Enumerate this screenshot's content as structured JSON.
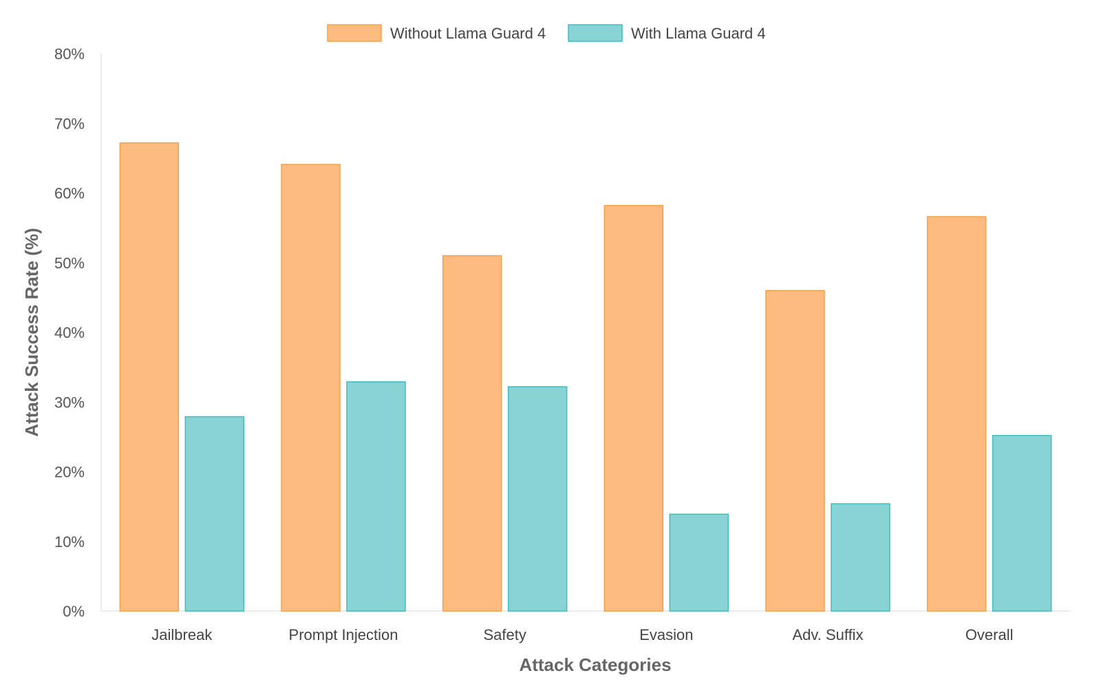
{
  "chart_data": {
    "type": "bar",
    "title": "",
    "xlabel": "Attack Categories",
    "ylabel": "Attack Success Rate (%)",
    "ylim": [
      0,
      80
    ],
    "yticks": [
      "0%",
      "10%",
      "20%",
      "30%",
      "40%",
      "50%",
      "60%",
      "70%",
      "80%"
    ],
    "grid": false,
    "legend_position": "top-center",
    "categories": [
      "Jailbreak",
      "Prompt Injection",
      "Safety",
      "Evasion",
      "Adv. Suffix",
      "Overall"
    ],
    "series": [
      {
        "name": "Without Llama Guard 4",
        "fill": "#FEBB80",
        "stroke": "#F3A146",
        "values": [
          67.2,
          64.1,
          51.0,
          58.2,
          46.0,
          56.6
        ]
      },
      {
        "name": "With Llama Guard 4",
        "fill": "#88D3D4",
        "stroke": "#3FBDBD",
        "values": [
          27.9,
          32.9,
          32.2,
          13.9,
          15.4,
          25.2
        ]
      }
    ]
  }
}
